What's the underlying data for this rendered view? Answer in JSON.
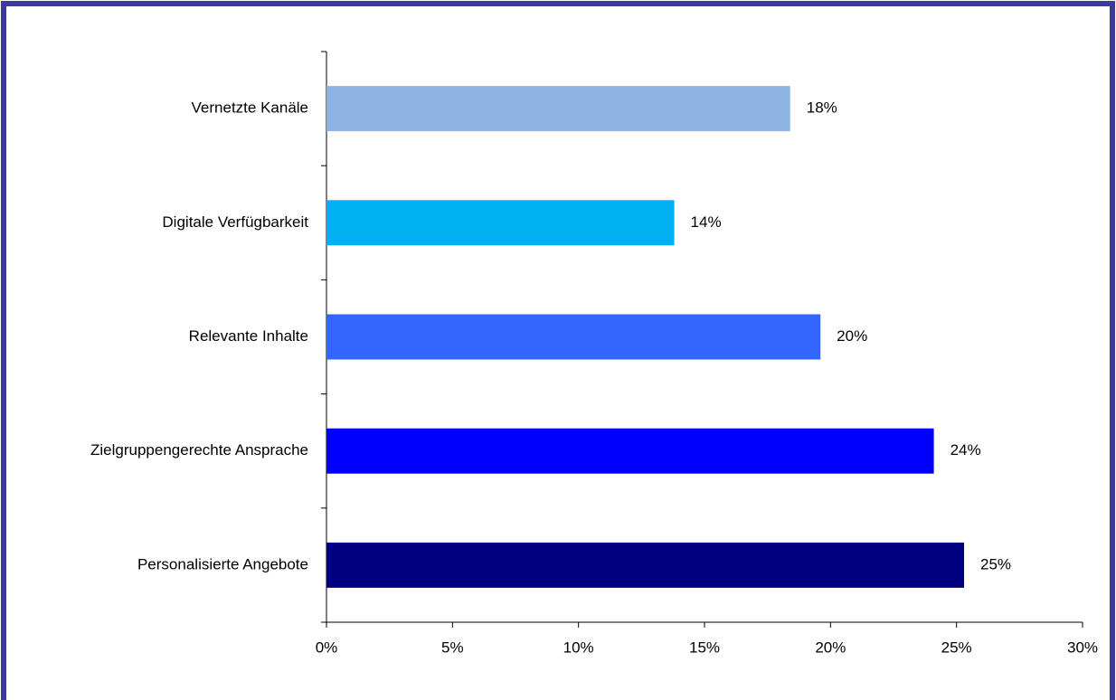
{
  "chart_data": {
    "type": "barh",
    "categories": [
      "Vernetzte Kanäle",
      "Digitale Verfügbarkeit",
      "Relevante Inhalte",
      "Zielgruppengerechte Ansprache",
      "Personalisierte Angebote"
    ],
    "values": [
      18.4,
      13.8,
      19.6,
      24.1,
      25.3
    ],
    "value_labels": [
      "18%",
      "14%",
      "20%",
      "24%",
      "25%"
    ],
    "colors": [
      "#8db3e2",
      "#00b0f0",
      "#3366ff",
      "#0000ff",
      "#000080"
    ],
    "xlim": [
      0,
      30
    ],
    "xticks": [
      {
        "value": 0,
        "label": "0%"
      },
      {
        "value": 5,
        "label": "5%"
      },
      {
        "value": 10,
        "label": "10%"
      },
      {
        "value": 15,
        "label": "15%"
      },
      {
        "value": 20,
        "label": "20%"
      },
      {
        "value": 25,
        "label": "25%"
      },
      {
        "value": 30,
        "label": "30%"
      }
    ],
    "grid": false
  }
}
